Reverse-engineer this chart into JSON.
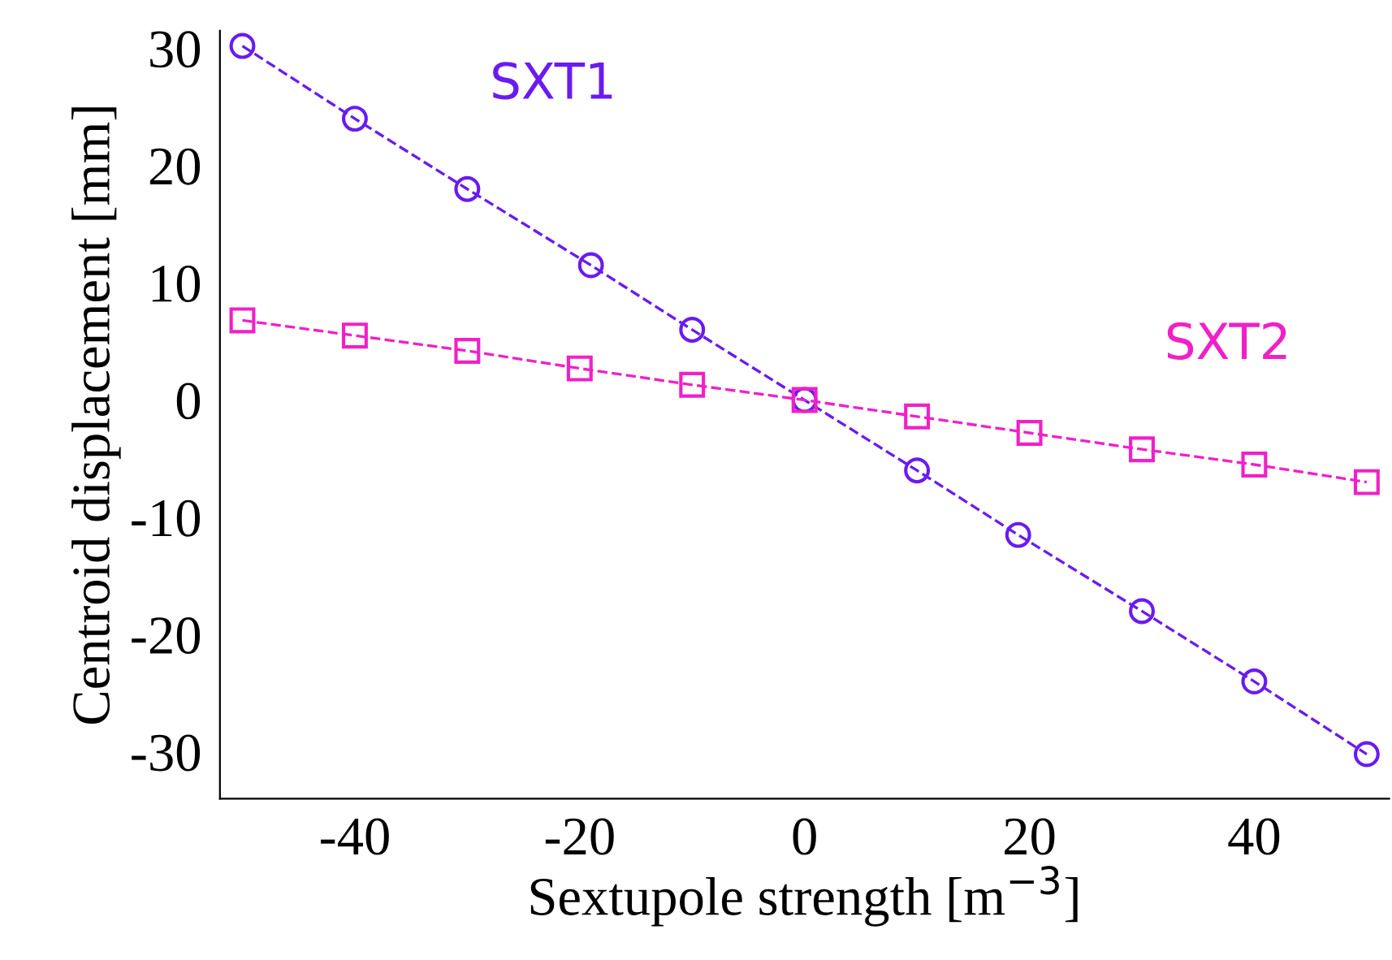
{
  "chart_data": {
    "type": "line",
    "xlabel": "Sextupole strength [m$^{−3}$]",
    "ylabel": "Centroid displacement [mm]",
    "x": [
      -50,
      -40,
      -30,
      -19,
      -10,
      0,
      10,
      19,
      30,
      40,
      50
    ],
    "series": [
      {
        "name": "SXT1",
        "color": "#6a1bf0",
        "marker": "circle",
        "values": [
          30.2,
          24,
          18,
          11.5,
          6,
          0,
          -6,
          -11.5,
          -18,
          -24,
          -30.2
        ]
      },
      {
        "name": "SXT2",
        "color": "#f020c8",
        "marker": "square",
        "x": [
          -50,
          -40,
          -30,
          -20,
          -10,
          0,
          10,
          20,
          30,
          40,
          50
        ],
        "values": [
          6.8,
          5.5,
          4.2,
          2.7,
          1.3,
          0,
          -1.4,
          -2.8,
          -4.2,
          -5.5,
          -7
        ]
      }
    ],
    "line_style": "dashed",
    "xlim": [
      -52,
      52
    ],
    "ylim": [
      -34,
      31.5
    ],
    "xticks": [
      -40,
      -20,
      0,
      20,
      40
    ],
    "yticks": [
      -30,
      -20,
      -10,
      0,
      10,
      20,
      30
    ],
    "grid": false,
    "legend": false
  }
}
